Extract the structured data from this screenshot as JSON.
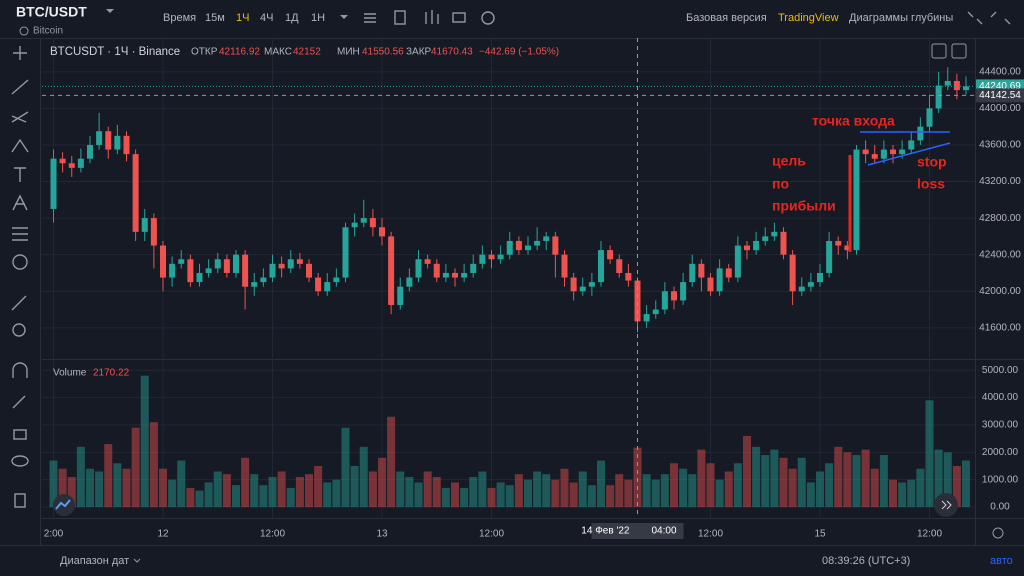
{
  "header": {
    "symbol": "BTC/USDT",
    "asset": "Bitcoin",
    "time_label": "Время",
    "intervals": [
      "15м",
      "1Ч",
      "4Ч",
      "1Д",
      "1Н"
    ],
    "views": [
      "Базовая версия",
      "TradingView",
      "Диаграммы глубины"
    ]
  },
  "legend": {
    "title": "BTCUSDT · 1Ч · Binance",
    "open_label": "ОТКР",
    "high_label": "МАКС",
    "low_label": "МИН",
    "close_label": "ЗАКР",
    "change": "−442.69 (−1.05%)",
    "volume_label": "Volume"
  },
  "footer": {
    "range": "Диапазон дат",
    "clock": "08:39:26 (UTC+3)",
    "scale_mode": "авто"
  },
  "chart_data": {
    "type": "candlestick",
    "up_color": "#26a69a",
    "down_color": "#ef5350",
    "grid": true,
    "categories": [
      "2:00",
      null,
      null,
      null,
      null,
      null,
      null,
      null,
      null,
      null,
      null,
      null,
      "12",
      null,
      null,
      null,
      null,
      null,
      null,
      null,
      null,
      null,
      null,
      null,
      "12:00",
      null,
      null,
      null,
      null,
      null,
      null,
      null,
      null,
      null,
      null,
      null,
      "13",
      null,
      null,
      null,
      null,
      null,
      null,
      null,
      null,
      null,
      null,
      null,
      "12:00",
      null,
      null,
      null,
      null,
      null,
      null,
      null,
      null,
      null,
      null,
      null,
      null,
      null,
      null,
      null,
      null,
      null,
      null,
      null,
      null,
      null,
      null,
      null,
      "12:00",
      null,
      null,
      null,
      null,
      null,
      null,
      null,
      null,
      null,
      null,
      null,
      "15",
      null,
      null,
      null,
      null,
      null,
      null,
      null,
      null,
      null,
      null,
      null,
      "12:00",
      null,
      null,
      null,
      null
    ],
    "open": [
      42900,
      43450,
      43400,
      43350,
      43450,
      43600,
      43750,
      43550,
      43700,
      43500,
      42650,
      42800,
      42500,
      42150,
      42300,
      42350,
      42100,
      42200,
      42250,
      42350,
      42200,
      42400,
      42050,
      42100,
      42150,
      42300,
      42250,
      42350,
      42300,
      42150,
      42000,
      42100,
      42150,
      42700,
      42750,
      42800,
      42700,
      42600,
      41850,
      42050,
      42150,
      42350,
      42300,
      42150,
      42200,
      42150,
      42200,
      42300,
      42400,
      42350,
      42400,
      42550,
      42450,
      42500,
      42550,
      42600,
      42400,
      42150,
      42000,
      42050,
      42100,
      42450,
      42350,
      42200,
      42116.92,
      41670.43,
      41750,
      41800,
      42000,
      41900,
      42100,
      42300,
      42150,
      42000,
      42250,
      42150,
      42500,
      42450,
      42550,
      42600,
      42650,
      42400,
      42000,
      42050,
      42100,
      42200,
      42550,
      42500,
      42450,
      43550,
      43500,
      43450,
      43550,
      43500,
      43550,
      43650,
      43800,
      44000,
      44250,
      44300,
      44200
    ],
    "high": [
      43550,
      43520,
      43480,
      43560,
      43700,
      43950,
      43800,
      43820,
      43750,
      43550,
      42900,
      42850,
      42550,
      42380,
      42450,
      42400,
      42300,
      42350,
      42420,
      42400,
      42450,
      42450,
      42200,
      42250,
      42400,
      42380,
      42450,
      42420,
      42350,
      42200,
      42200,
      42250,
      42750,
      42850,
      43000,
      42900,
      42800,
      42650,
      42150,
      42250,
      42450,
      42400,
      42350,
      42300,
      42250,
      42300,
      42400,
      42500,
      42450,
      42500,
      42650,
      42600,
      42600,
      42700,
      42650,
      42650,
      42450,
      42200,
      42150,
      42200,
      42550,
      42500,
      42400,
      42300,
      42152,
      41850,
      41900,
      42100,
      42050,
      42200,
      42400,
      42350,
      42200,
      42350,
      42300,
      42600,
      42550,
      42650,
      42700,
      42750,
      42700,
      42450,
      42150,
      42200,
      42300,
      42650,
      42600,
      42550,
      43600,
      43650,
      43600,
      43650,
      43600,
      43650,
      43750,
      43900,
      44150,
      44400,
      44450,
      44380,
      44350
    ],
    "low": [
      42750,
      43300,
      43250,
      43300,
      43400,
      43550,
      43450,
      43500,
      43420,
      42550,
      42550,
      42250,
      42000,
      42050,
      42250,
      42050,
      42050,
      42150,
      42200,
      42150,
      42150,
      41800,
      41950,
      42050,
      42100,
      42150,
      42200,
      42250,
      42100,
      41950,
      41950,
      42050,
      42100,
      42600,
      42700,
      42600,
      42500,
      41750,
      41800,
      42000,
      42100,
      42250,
      42100,
      42100,
      42050,
      42100,
      42150,
      42250,
      42250,
      42300,
      42350,
      42400,
      42400,
      42450,
      42450,
      42150,
      42050,
      41900,
      41950,
      41950,
      42050,
      42300,
      42150,
      42050,
      41550.56,
      41600,
      41700,
      41750,
      41800,
      41850,
      42050,
      42000,
      41950,
      41950,
      42100,
      42100,
      42350,
      42400,
      42500,
      42550,
      42350,
      41850,
      41950,
      42000,
      42050,
      42150,
      42400,
      42350,
      42400,
      43400,
      43400,
      43400,
      43400,
      43450,
      43500,
      43600,
      43750,
      43950,
      44200,
      44100,
      44150
    ],
    "close": [
      43450,
      43400,
      43350,
      43450,
      43600,
      43750,
      43550,
      43700,
      43500,
      42650,
      42800,
      42500,
      42150,
      42300,
      42350,
      42100,
      42200,
      42250,
      42350,
      42200,
      42400,
      42050,
      42100,
      42150,
      42300,
      42250,
      42350,
      42300,
      42150,
      42000,
      42100,
      42150,
      42700,
      42750,
      42800,
      42700,
      42600,
      41850,
      42050,
      42150,
      42350,
      42300,
      42150,
      42200,
      42150,
      42200,
      42300,
      42400,
      42350,
      42400,
      42550,
      42450,
      42500,
      42550,
      42600,
      42400,
      42150,
      42000,
      42050,
      42100,
      42450,
      42350,
      42200,
      42116.92,
      41670.43,
      41750,
      41800,
      42000,
      41900,
      42100,
      42300,
      42150,
      42000,
      42250,
      42150,
      42500,
      42450,
      42550,
      42600,
      42650,
      42400,
      42000,
      42050,
      42100,
      42200,
      42550,
      42500,
      42450,
      43550,
      43500,
      43450,
      43550,
      43500,
      43550,
      43650,
      43800,
      44000,
      44250,
      44300,
      44200,
      44240.69
    ],
    "volume": [
      1700,
      1400,
      1100,
      2200,
      1400,
      1300,
      2300,
      1600,
      1400,
      2900,
      4800,
      3100,
      1400,
      1000,
      1700,
      700,
      600,
      900,
      1300,
      1200,
      800,
      1800,
      1200,
      800,
      1100,
      1300,
      700,
      1100,
      1200,
      1500,
      900,
      1000,
      2900,
      1500,
      2200,
      1300,
      1800,
      3300,
      1300,
      1100,
      900,
      1300,
      1100,
      700,
      900,
      700,
      1100,
      1300,
      700,
      900,
      800,
      1200,
      1000,
      1300,
      1200,
      1000,
      1400,
      900,
      1300,
      800,
      1700,
      800,
      1200,
      1000,
      2170.22,
      1200,
      1000,
      1200,
      1600,
      1400,
      1200,
      2100,
      1600,
      1000,
      1300,
      1600,
      2600,
      2200,
      1900,
      2100,
      1800,
      1400,
      1800,
      900,
      1300,
      1600,
      2200,
      2000,
      1900,
      2100,
      1400,
      1900,
      1000,
      900,
      1000,
      1400,
      3900,
      2100,
      2000,
      1500,
      1700
    ],
    "ylim": [
      41270,
      44770
    ],
    "yticks": [
      {
        "value": 41600,
        "label": "41600.00"
      },
      {
        "value": 42000,
        "label": "42000.00"
      },
      {
        "value": 42400,
        "label": "42400.00"
      },
      {
        "value": 42800,
        "label": "42800.00"
      },
      {
        "value": 43200,
        "label": "43200.00"
      },
      {
        "value": 43600,
        "label": "43600.00"
      },
      {
        "value": 44000,
        "label": "44000.00"
      },
      {
        "value": 44400,
        "label": "44400.00"
      }
    ],
    "y2lim": [
      -400,
      5300
    ],
    "y2ticks": [
      {
        "value": 0,
        "label": "0.00"
      },
      {
        "value": 1000,
        "label": "1000.00"
      },
      {
        "value": 2000,
        "label": "2000.00"
      },
      {
        "value": 3000,
        "label": "3000.00"
      },
      {
        "value": 4000,
        "label": "4000.00"
      },
      {
        "value": 5000,
        "label": "5000.00"
      }
    ],
    "crosshair_price": 44142.54,
    "crosshair_date": "14 Фев '22",
    "crosshair_time": "04:00",
    "annotations": {
      "entry": "точка входа",
      "target": [
        "цель",
        "по",
        "прибыли"
      ],
      "stop": [
        "stop",
        "loss"
      ]
    }
  }
}
